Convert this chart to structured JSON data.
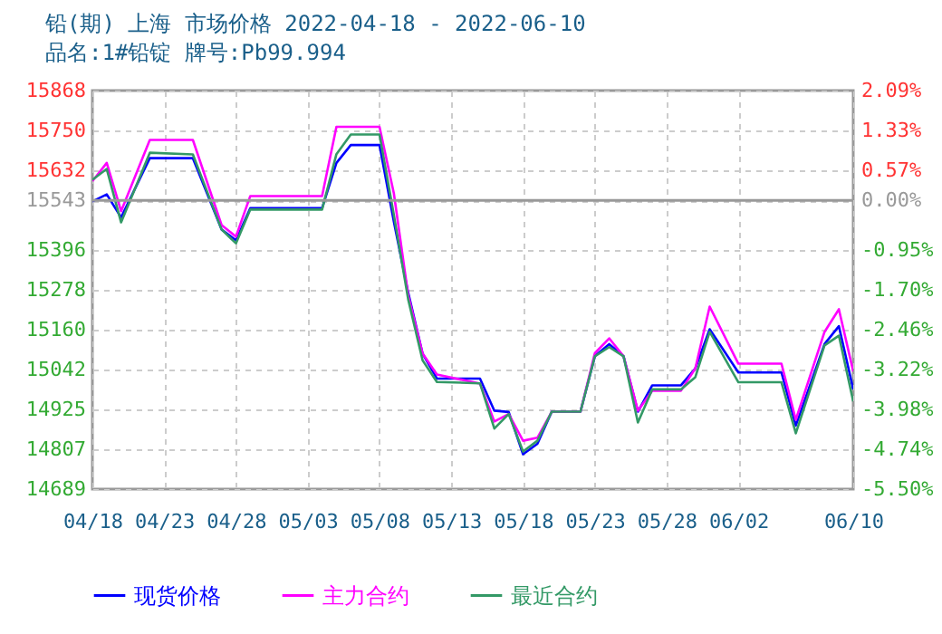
{
  "chart_data": {
    "type": "line",
    "title": "铅(期) 上海 市场价格 2022-04-18 - 2022-06-10",
    "subtitle": "品名:1#铅锭 牌号:Pb99.994",
    "xlim": [
      "2022-04-18",
      "2022-06-10"
    ],
    "xticks": [
      {
        "value": "2022-04-18",
        "label": "04/18"
      },
      {
        "value": "2022-04-23",
        "label": "04/23"
      },
      {
        "value": "2022-04-28",
        "label": "04/28"
      },
      {
        "value": "2022-05-03",
        "label": "05/03"
      },
      {
        "value": "2022-05-08",
        "label": "05/08"
      },
      {
        "value": "2022-05-13",
        "label": "05/13"
      },
      {
        "value": "2022-05-18",
        "label": "05/18"
      },
      {
        "value": "2022-05-23",
        "label": "05/23"
      },
      {
        "value": "2022-05-28",
        "label": "05/28"
      },
      {
        "value": "2022-06-02",
        "label": "06/02"
      },
      {
        "value": "2022-06-10",
        "label": "06/10"
      }
    ],
    "x": [
      "2022-04-18",
      "2022-04-19",
      "2022-04-20",
      "2022-04-22",
      "2022-04-25",
      "2022-04-27",
      "2022-04-28",
      "2022-04-29",
      "2022-05-04",
      "2022-05-05",
      "2022-05-06",
      "2022-05-08",
      "2022-05-09",
      "2022-05-10",
      "2022-05-11",
      "2022-05-12",
      "2022-05-15",
      "2022-05-16",
      "2022-05-17",
      "2022-05-18",
      "2022-05-19",
      "2022-05-20",
      "2022-05-22",
      "2022-05-23",
      "2022-05-24",
      "2022-05-25",
      "2022-05-26",
      "2022-05-27",
      "2022-05-29",
      "2022-05-30",
      "2022-05-31",
      "2022-06-02",
      "2022-06-05",
      "2022-06-06",
      "2022-06-08",
      "2022-06-09",
      "2022-06-10"
    ],
    "ylim": [
      14689,
      15868
    ],
    "yticks": [
      14689,
      14807,
      14925,
      15042,
      15160,
      15278,
      15396,
      15543,
      15632,
      15750,
      15868
    ],
    "y2lim": [
      -5.5,
      2.09
    ],
    "y2ticks": [
      {
        "value": -5.5,
        "label": "-5.50%"
      },
      {
        "value": -4.74,
        "label": "-4.74%"
      },
      {
        "value": -3.98,
        "label": "-3.98%"
      },
      {
        "value": -3.22,
        "label": "-3.22%"
      },
      {
        "value": -2.46,
        "label": "-2.46%"
      },
      {
        "value": -1.7,
        "label": "-1.70%"
      },
      {
        "value": -0.95,
        "label": "-0.95%"
      },
      {
        "value": 0,
        "label": "0.00%"
      },
      {
        "value": 0.57,
        "label": "0.57%"
      },
      {
        "value": 1.33,
        "label": "1.33%"
      },
      {
        "value": 2.09,
        "label": "2.09%"
      }
    ],
    "ref_lines": [
      {
        "axis": "y2",
        "value": 0,
        "color": "#999999",
        "line_style": "solid"
      }
    ],
    "grid": true,
    "legend": "bottom",
    "line_style": "solid",
    "marker": "none",
    "series": [
      {
        "name": "现货价格",
        "color": "#0000ff",
        "values": [
          15540,
          15561,
          15493,
          15668,
          15668,
          15457,
          15425,
          15520,
          15520,
          15654,
          15707,
          15707,
          15480,
          15270,
          15090,
          15016,
          15016,
          14921,
          14917,
          14792,
          14823,
          14918,
          14918,
          15082,
          15118,
          15082,
          14918,
          14996,
          14996,
          15046,
          15162,
          15034,
          15034,
          14877,
          15118,
          15171,
          14984
        ]
      },
      {
        "name": "主力合约",
        "color": "#ff00ff",
        "values": [
          15600,
          15654,
          15511,
          15722,
          15722,
          15470,
          15436,
          15556,
          15556,
          15761,
          15761,
          15761,
          15564,
          15262,
          15090,
          15028,
          15001,
          14889,
          14911,
          14832,
          14841,
          14918,
          14918,
          15091,
          15135,
          15082,
          14921,
          14980,
          14980,
          15046,
          15229,
          15060,
          15060,
          14894,
          15154,
          15221,
          15037
        ]
      },
      {
        "name": "最近合约",
        "color": "#339966",
        "values": [
          15604,
          15636,
          15478,
          15684,
          15679,
          15457,
          15416,
          15516,
          15516,
          15680,
          15738,
          15738,
          15500,
          15250,
          15070,
          15006,
          15002,
          14868,
          14911,
          14800,
          14832,
          14918,
          14918,
          15082,
          15109,
          15082,
          14886,
          14984,
          14984,
          15020,
          15154,
          15005,
          15005,
          14854,
          15114,
          15143,
          14948
        ]
      }
    ]
  }
}
